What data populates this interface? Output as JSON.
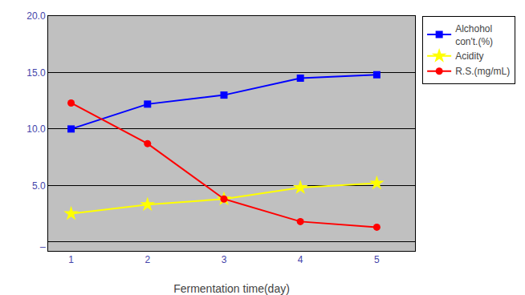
{
  "chart_data": {
    "type": "line",
    "x": [
      1,
      2,
      3,
      4,
      5
    ],
    "xlabel": "Fermentation time(day)",
    "xlim": [
      0.7,
      5.5
    ],
    "xticks": [
      1,
      2,
      3,
      4,
      5
    ],
    "ylim": [
      -0.8,
      20.0
    ],
    "yticks": [
      {
        "value": 0,
        "label": "_"
      },
      {
        "value": 5.0,
        "label": "5.0"
      },
      {
        "value": 10.0,
        "label": "10.0"
      },
      {
        "value": 15.0,
        "label": "15.0"
      },
      {
        "value": 20.0,
        "label": "20.0"
      }
    ],
    "grid": "y",
    "legend": "right",
    "series": [
      {
        "name": "Alchohol\ncon't.(%)",
        "color": "#0000FF",
        "marker": "square",
        "values": [
          10.0,
          12.2,
          13.0,
          14.5,
          14.8
        ]
      },
      {
        "name": "Acidity",
        "color": "#FFFF00",
        "marker": "star",
        "values": [
          2.5,
          3.3,
          3.8,
          4.8,
          5.2
        ]
      },
      {
        "name": "R.S.(mg/mL)",
        "color": "#FF0000",
        "marker": "circle",
        "values": [
          12.3,
          8.7,
          3.8,
          1.8,
          1.3
        ]
      }
    ]
  }
}
